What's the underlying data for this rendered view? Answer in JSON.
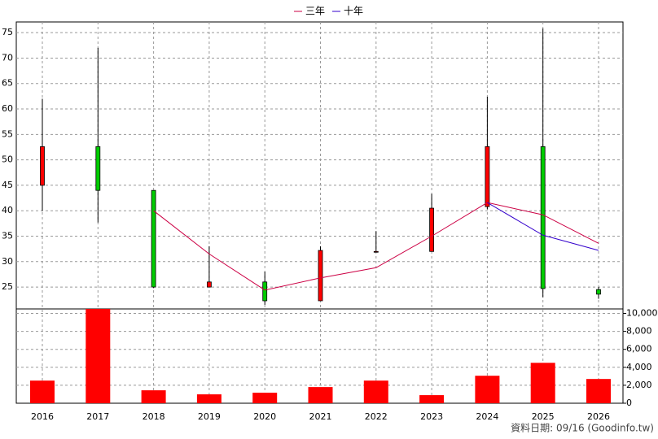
{
  "chart_data": {
    "type": "candlestick",
    "categories": [
      "2016",
      "2017",
      "2018",
      "2019",
      "2020",
      "2021",
      "2022",
      "2023",
      "2024",
      "2025",
      "2026"
    ],
    "open": [
      45,
      52.6,
      44,
      25,
      26,
      22.3,
      32,
      32,
      40.8,
      52.6,
      24.5
    ],
    "high": [
      62,
      72,
      44,
      33,
      28,
      33,
      36,
      43.3,
      62.4,
      75.8,
      25
    ],
    "low": [
      40,
      37.7,
      24.8,
      25,
      21.5,
      22.3,
      32,
      32,
      40.3,
      23,
      22.7
    ],
    "close": [
      52.6,
      44,
      25,
      26,
      22.3,
      32.2,
      32,
      40.5,
      52.6,
      24.7,
      23.6
    ],
    "up_color": "#ff0000",
    "down_color": "#00cc00",
    "series": [
      {
        "name": "三年",
        "color": "#cc0044",
        "values": [
          null,
          null,
          40,
          31.5,
          24.4,
          26.8,
          28.8,
          35,
          41.6,
          39.2,
          33.6
        ]
      },
      {
        "name": "十年",
        "color": "#3300cc",
        "values": [
          null,
          null,
          null,
          null,
          null,
          null,
          null,
          null,
          41.6,
          35.2,
          32.2
        ]
      }
    ],
    "ylim": [
      20.7,
      77.1
    ],
    "yticks": [
      25,
      30,
      35,
      40,
      45,
      50,
      55,
      60,
      65,
      70,
      75
    ],
    "volume": {
      "color": "#ff0000",
      "values": [
        2520,
        10500,
        1440,
        990,
        1170,
        1800,
        2520,
        900,
        3060,
        4500,
        2700
      ],
      "ylim": [
        0,
        10500
      ],
      "yticks": [
        0,
        {
          "value": 2000,
          "label": "2,000"
        },
        {
          "value": 4000,
          "label": "4,000"
        },
        {
          "value": 6000,
          "label": "6,000"
        },
        {
          "value": 8000,
          "label": "8,000"
        },
        {
          "value": 10000,
          "label": "10,000"
        }
      ]
    },
    "grid": true,
    "note": "資料日期: 09/16  (Goodinfo.tw)"
  }
}
